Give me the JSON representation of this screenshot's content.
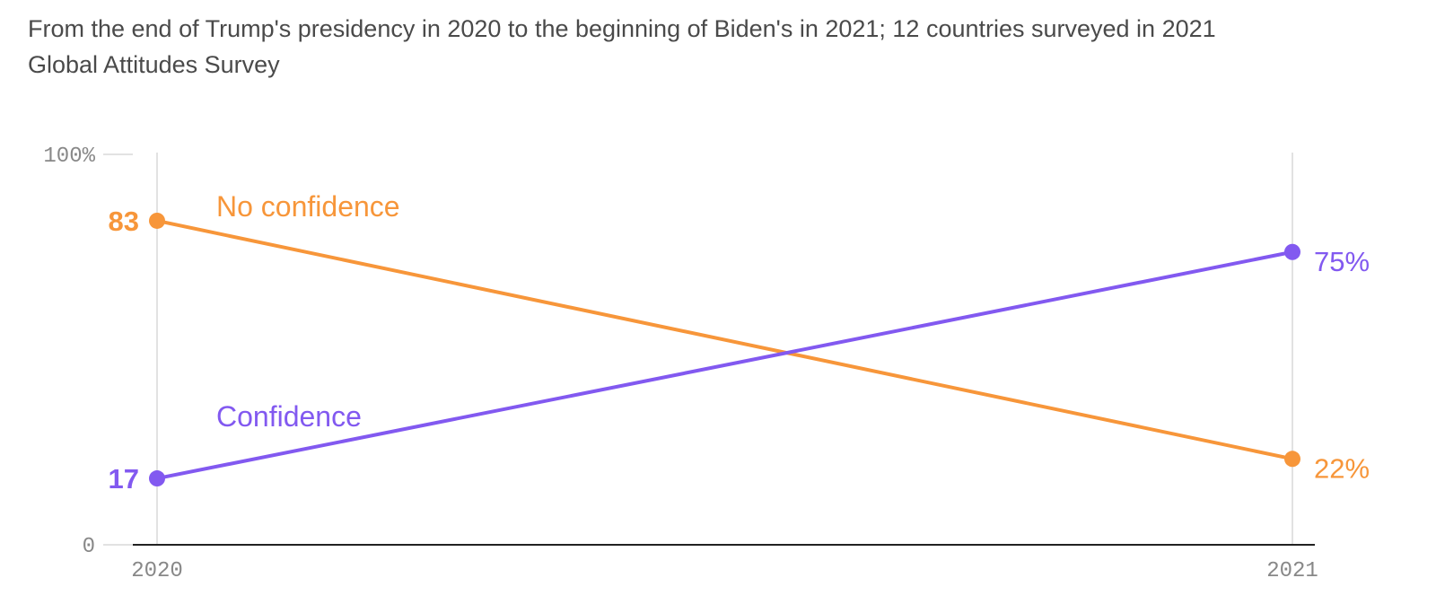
{
  "subtitle": {
    "line1": "From the end of Trump's presidency in 2020 to the beginning of Biden's in 2021; 12 countries surveyed in 2021",
    "line2": "Global Attitudes Survey"
  },
  "colors": {
    "no_confidence": "#f7963a",
    "confidence": "#8259f0",
    "axis": "#222222",
    "grid": "#e2e2e2"
  },
  "chart_data": {
    "type": "line",
    "x": [
      "2020",
      "2021"
    ],
    "series": [
      {
        "name": "No confidence",
        "values": [
          83,
          22
        ],
        "value_labels": [
          "83",
          "22%"
        ]
      },
      {
        "name": "Confidence",
        "values": [
          17,
          75
        ],
        "value_labels": [
          "17",
          "75%"
        ]
      }
    ],
    "ylim": [
      0,
      100
    ],
    "y_ticks": [
      "0",
      "100%"
    ],
    "xlabel": "",
    "ylabel": "",
    "grid": true,
    "legend": "inline labels on lines"
  }
}
